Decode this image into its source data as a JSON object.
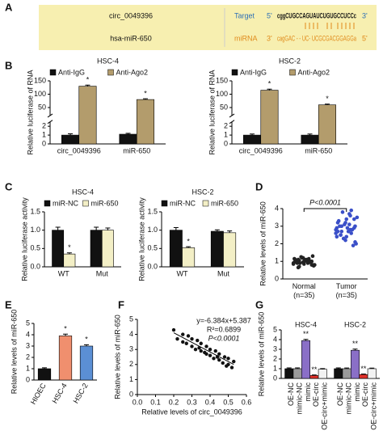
{
  "panel_labels": [
    "A",
    "B",
    "C",
    "D",
    "E",
    "F",
    "G"
  ],
  "sequence": {
    "left": [
      "circ_0049396",
      "hsa-miR-650"
    ],
    "rows": [
      {
        "label": "Target",
        "five": "5'",
        "seq": "cggCUGCCAGUAUCUGUGCCUCCc",
        "three": "3'"
      },
      {
        "label": "miRNA",
        "five": "3'",
        "seq": "cagGAC - - UC- UCGCGACGGAGGa",
        "three": "5'"
      }
    ]
  },
  "chart_data": [
    {
      "type": "bar",
      "title": "HSC-4",
      "ylabel": "Relative luciferase of RNA",
      "categories": [
        "circ_0049396",
        "miR-650"
      ],
      "series": [
        {
          "name": "Anti-IgG",
          "color": "#111111",
          "values": [
            1,
            1.1
          ],
          "errors": [
            0.15,
            0.1
          ]
        },
        {
          "name": "Anti-Ago2",
          "color": "#b39c6c",
          "values": [
            130,
            80
          ],
          "errors": [
            4,
            3
          ],
          "annotations": [
            "*",
            "*"
          ]
        }
      ],
      "ylim": [
        0,
        150
      ],
      "yticks": [
        0,
        1,
        2,
        50,
        100,
        150
      ],
      "axis_break": [
        2.5,
        20
      ]
    },
    {
      "type": "bar",
      "title": "HSC-2",
      "ylabel": "Relative luciferase of RNA",
      "categories": [
        "circ_0049396",
        "miR-650"
      ],
      "series": [
        {
          "name": "Anti-IgG",
          "color": "#111111",
          "values": [
            1,
            1
          ],
          "errors": [
            0.12,
            0.12
          ]
        },
        {
          "name": "Anti-Ago2",
          "color": "#b39c6c",
          "values": [
            115,
            60
          ],
          "errors": [
            4,
            3
          ],
          "annotations": [
            "*",
            "*"
          ]
        }
      ],
      "ylim": [
        0,
        150
      ],
      "yticks": [
        0,
        1,
        2,
        50,
        100,
        150
      ],
      "axis_break": [
        2.5,
        20
      ]
    },
    {
      "type": "bar",
      "title": "HSC-4",
      "ylabel": "Relative luciferase activity",
      "categories": [
        "WT",
        "Mut"
      ],
      "series": [
        {
          "name": "miR-NC",
          "color": "#111111",
          "values": [
            1.0,
            1.0
          ],
          "errors": [
            0.08,
            0.08
          ]
        },
        {
          "name": "miR-650",
          "color": "#f3efc6",
          "values": [
            0.35,
            1.0
          ],
          "errors": [
            0.03,
            0.06
          ],
          "annotations": [
            "*",
            null
          ]
        }
      ],
      "ylim": [
        0,
        1.5
      ],
      "yticks": [
        {
          "value": 0,
          "label": "0.0"
        },
        {
          "value": 0.5,
          "label": "0.5"
        },
        {
          "value": 1,
          "label": "1.0"
        },
        {
          "value": 1.5,
          "label": "1.5"
        }
      ]
    },
    {
      "type": "bar",
      "title": "HSC-2",
      "ylabel": "Relative luciferase activity",
      "categories": [
        "WT",
        "Mut"
      ],
      "series": [
        {
          "name": "miR-NC",
          "color": "#111111",
          "values": [
            1.0,
            0.97
          ],
          "errors": [
            0.07,
            0.04
          ]
        },
        {
          "name": "miR-650",
          "color": "#f3efc6",
          "values": [
            0.52,
            0.93
          ],
          "errors": [
            0.03,
            0.05
          ],
          "annotations": [
            "*",
            null
          ]
        }
      ],
      "ylim": [
        0,
        1.5
      ],
      "yticks": [
        {
          "value": 0,
          "label": "0.0"
        },
        {
          "value": 0.5,
          "label": "0.5"
        },
        {
          "value": 1,
          "label": "1.0"
        },
        {
          "value": 1.5,
          "label": "1.5"
        }
      ]
    },
    {
      "type": "strip",
      "ylabel": "Relative levels of miR-650",
      "categories": [
        "Normal\n(n=35)",
        "Tumor\n(n=35)"
      ],
      "colors": [
        "#222222",
        "#3a4fc8"
      ],
      "annotation": "P<0.0001",
      "values": [
        [
          0.9,
          1.0,
          1.1,
          0.8,
          1.2,
          0.95,
          1.05,
          0.7,
          1.3,
          0.85,
          1.0,
          1.15,
          0.9,
          0.75,
          1.1,
          1.0,
          0.95,
          1.25,
          0.8,
          1.05,
          0.9,
          1.0,
          1.2,
          0.85,
          1.1,
          0.65,
          1.0,
          0.95,
          1.15,
          0.9,
          1.05,
          0.8,
          1.0,
          1.1,
          0.95
        ],
        [
          2.8,
          3.1,
          2.5,
          3.4,
          2.2,
          2.9,
          3.6,
          2.7,
          3.0,
          2.4,
          3.2,
          2.6,
          3.8,
          2.0,
          2.9,
          3.3,
          2.8,
          2.3,
          3.5,
          2.7,
          3.0,
          1.9,
          3.1,
          2.6,
          3.7,
          2.5,
          2.9,
          3.2,
          2.4,
          2.8,
          3.0,
          2.1,
          3.4,
          2.7,
          3.9
        ]
      ],
      "ylim": [
        0,
        4
      ],
      "yticks": [
        0,
        1,
        2,
        3,
        4
      ]
    },
    {
      "type": "bar",
      "ylabel": "Relative levels of miR-650",
      "categories": [
        "HIOEC",
        "HSC-4",
        "HSC-2"
      ],
      "values": [
        1.0,
        3.9,
        3.0
      ],
      "errors": [
        0.08,
        0.15,
        0.12
      ],
      "colors": [
        "#111111",
        "#f08f6e",
        "#5b8fd4"
      ],
      "annotations": [
        null,
        "*",
        "*"
      ],
      "ylim": [
        0,
        5
      ],
      "yticks": [
        0,
        1,
        2,
        3,
        4,
        5
      ]
    },
    {
      "type": "scatter",
      "ylabel": "Relative levels of miR-650",
      "xlabel": "Relative levels of circ_0049396",
      "annotations": [
        "y=-6.384x+5.387",
        "R²=0.6899",
        "P<0.0001"
      ],
      "trendline": {
        "slope": -6.384,
        "intercept": 5.387
      },
      "x": [
        0.2,
        0.22,
        0.25,
        0.27,
        0.28,
        0.3,
        0.3,
        0.32,
        0.33,
        0.35,
        0.35,
        0.37,
        0.38,
        0.4,
        0.4,
        0.42,
        0.43,
        0.45,
        0.45,
        0.47,
        0.48,
        0.5,
        0.5,
        0.52,
        0.53,
        0.25,
        0.34,
        0.44,
        0.38,
        0.49
      ],
      "values": [
        4.3,
        3.7,
        4.0,
        3.4,
        3.9,
        3.2,
        3.7,
        3.0,
        3.6,
        2.9,
        3.4,
        2.8,
        3.2,
        2.6,
        3.0,
        2.4,
        2.9,
        2.3,
        2.7,
        2.1,
        2.5,
        2.0,
        2.4,
        1.8,
        2.2,
        3.5,
        3.1,
        2.5,
        2.7,
        1.9
      ],
      "xlim": [
        0,
        0.6
      ],
      "xticks": [
        {
          "value": 0,
          "label": "0.0"
        },
        {
          "value": 0.1,
          "label": "0.1"
        },
        {
          "value": 0.2,
          "label": "0.2"
        },
        {
          "value": 0.3,
          "label": "0.3"
        },
        {
          "value": 0.4,
          "label": "0.4"
        },
        {
          "value": 0.5,
          "label": "0.5"
        },
        {
          "value": 0.6,
          "label": "0.6"
        }
      ],
      "ylim": [
        0,
        5
      ],
      "yticks": [
        0,
        1,
        2,
        3,
        4,
        5
      ]
    },
    {
      "type": "grouped_bar",
      "ylabel": "Relative levels of miR-650",
      "categories": [
        "OE-NC",
        "mimic-NC",
        "mimic",
        "OE-circ",
        "OE-circ+mimic"
      ],
      "colors": [
        "#111111",
        "#9a9a9a",
        "#8a6fc7",
        "#e0302a",
        "#f2f2f2"
      ],
      "series": [
        {
          "name": "HSC-4",
          "values": [
            1.0,
            1.0,
            3.9,
            0.3,
            0.95
          ],
          "errors": [
            0.08,
            0.08,
            0.12,
            0.05,
            0.06
          ],
          "annotations": [
            null,
            null,
            "**",
            "**",
            null
          ]
        },
        {
          "name": "HSC-2",
          "values": [
            1.0,
            1.0,
            2.9,
            0.4,
            1.0
          ],
          "errors": [
            0.08,
            0.07,
            0.12,
            0.05,
            0.06
          ],
          "annotations": [
            null,
            null,
            "**",
            "**",
            null
          ]
        }
      ],
      "ylim": [
        0,
        5
      ],
      "yticks": [
        0,
        1,
        2,
        3,
        4,
        5
      ]
    }
  ]
}
